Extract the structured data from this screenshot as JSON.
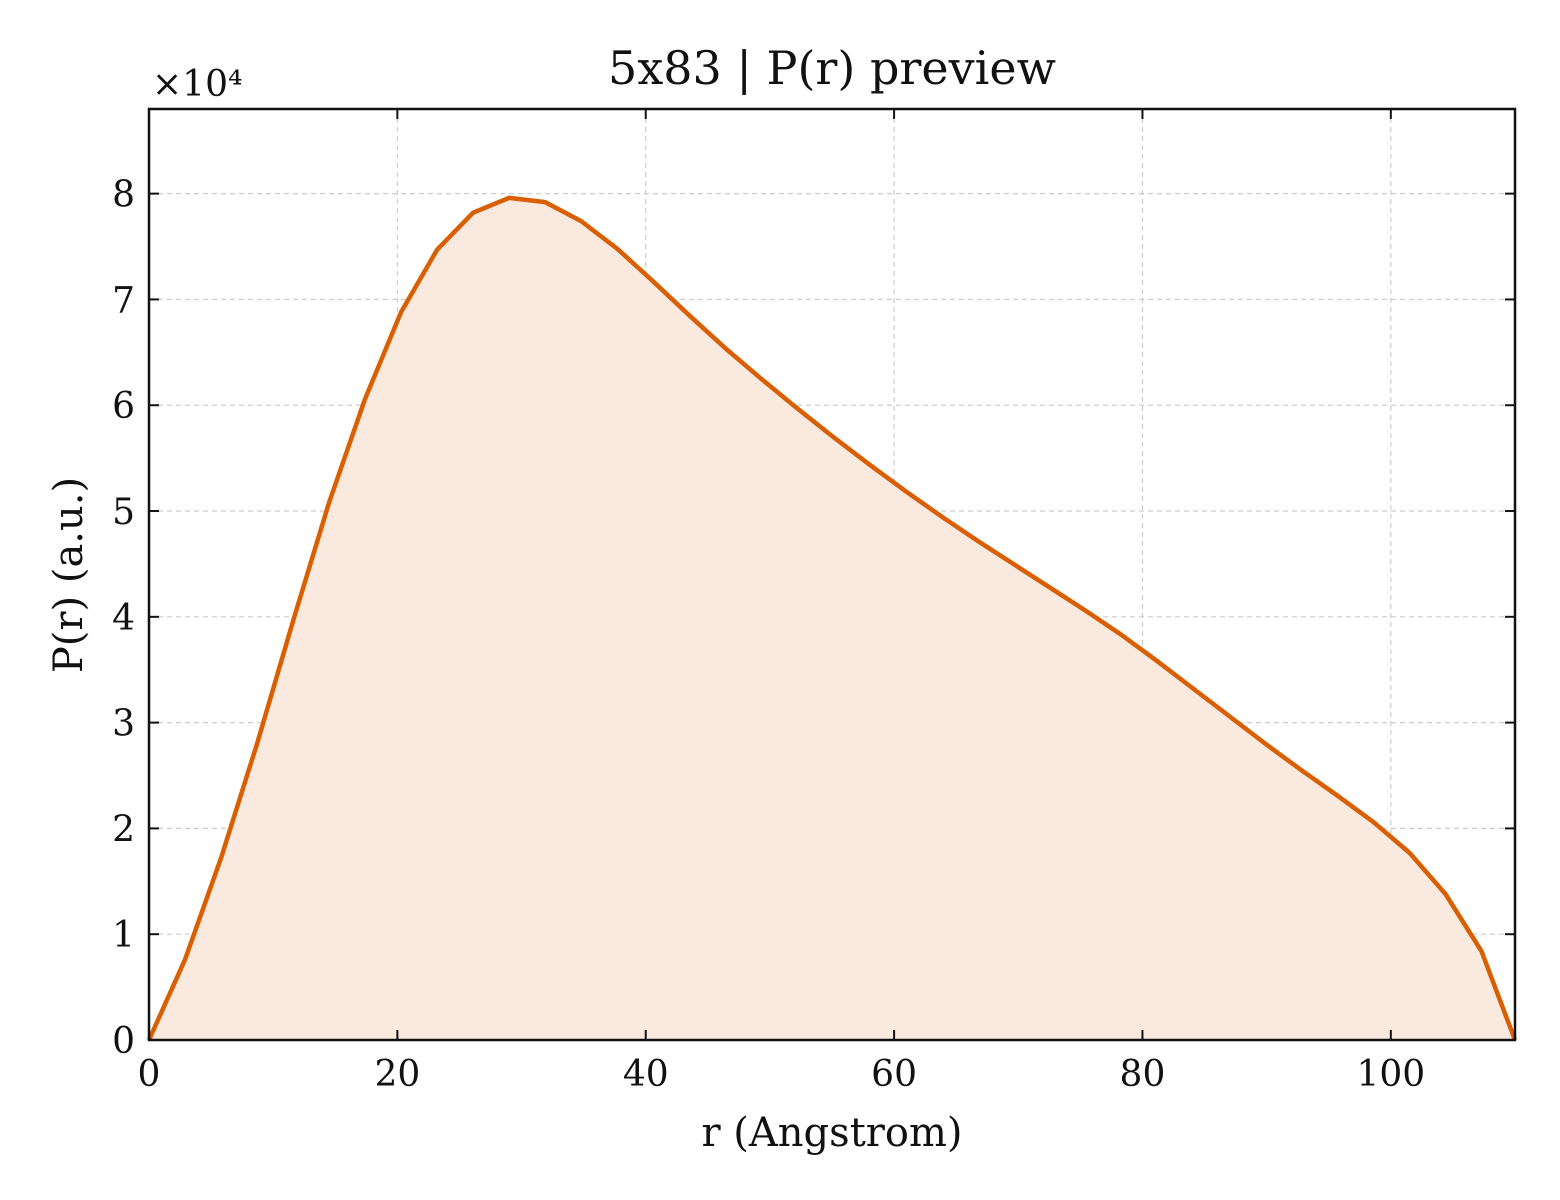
{
  "chart_data": {
    "type": "area",
    "title": "5x83 | P(r) preview",
    "xlabel": "r (Angstrom)",
    "ylabel": "P(r) (a.u.)",
    "y_multiplier_label": "×10⁴",
    "xlim": [
      0,
      110
    ],
    "ylim": [
      0,
      8.8
    ],
    "x_ticks": [
      0,
      20,
      40,
      60,
      80,
      100
    ],
    "y_ticks": [
      0,
      1,
      2,
      3,
      4,
      5,
      6,
      7,
      8
    ],
    "grid": true,
    "line_color": "#d95f02",
    "fill_color": "#f9e9de",
    "series": [
      {
        "x": [
          0,
          2.9,
          5.8,
          8.7,
          11.6,
          14.5,
          17.4,
          20.3,
          23.2,
          26.1,
          29.0,
          31.9,
          34.8,
          37.7,
          40.6,
          43.5,
          46.4,
          49.3,
          52.2,
          55.1,
          58.0,
          60.9,
          63.8,
          66.7,
          69.6,
          72.5,
          75.4,
          78.3,
          81.2,
          84.1,
          87.0,
          89.9,
          92.8,
          95.7,
          98.6,
          101.5,
          104.4,
          107.3,
          110.0
        ],
        "y": [
          0.0,
          0.76,
          1.72,
          2.8,
          3.96,
          5.08,
          6.06,
          6.88,
          7.47,
          7.82,
          7.96,
          7.92,
          7.74,
          7.48,
          7.17,
          6.85,
          6.54,
          6.25,
          5.97,
          5.7,
          5.44,
          5.19,
          4.95,
          4.72,
          4.5,
          4.28,
          4.06,
          3.83,
          3.58,
          3.32,
          3.06,
          2.8,
          2.55,
          2.31,
          2.06,
          1.77,
          1.38,
          0.84,
          0.0
        ]
      }
    ]
  }
}
